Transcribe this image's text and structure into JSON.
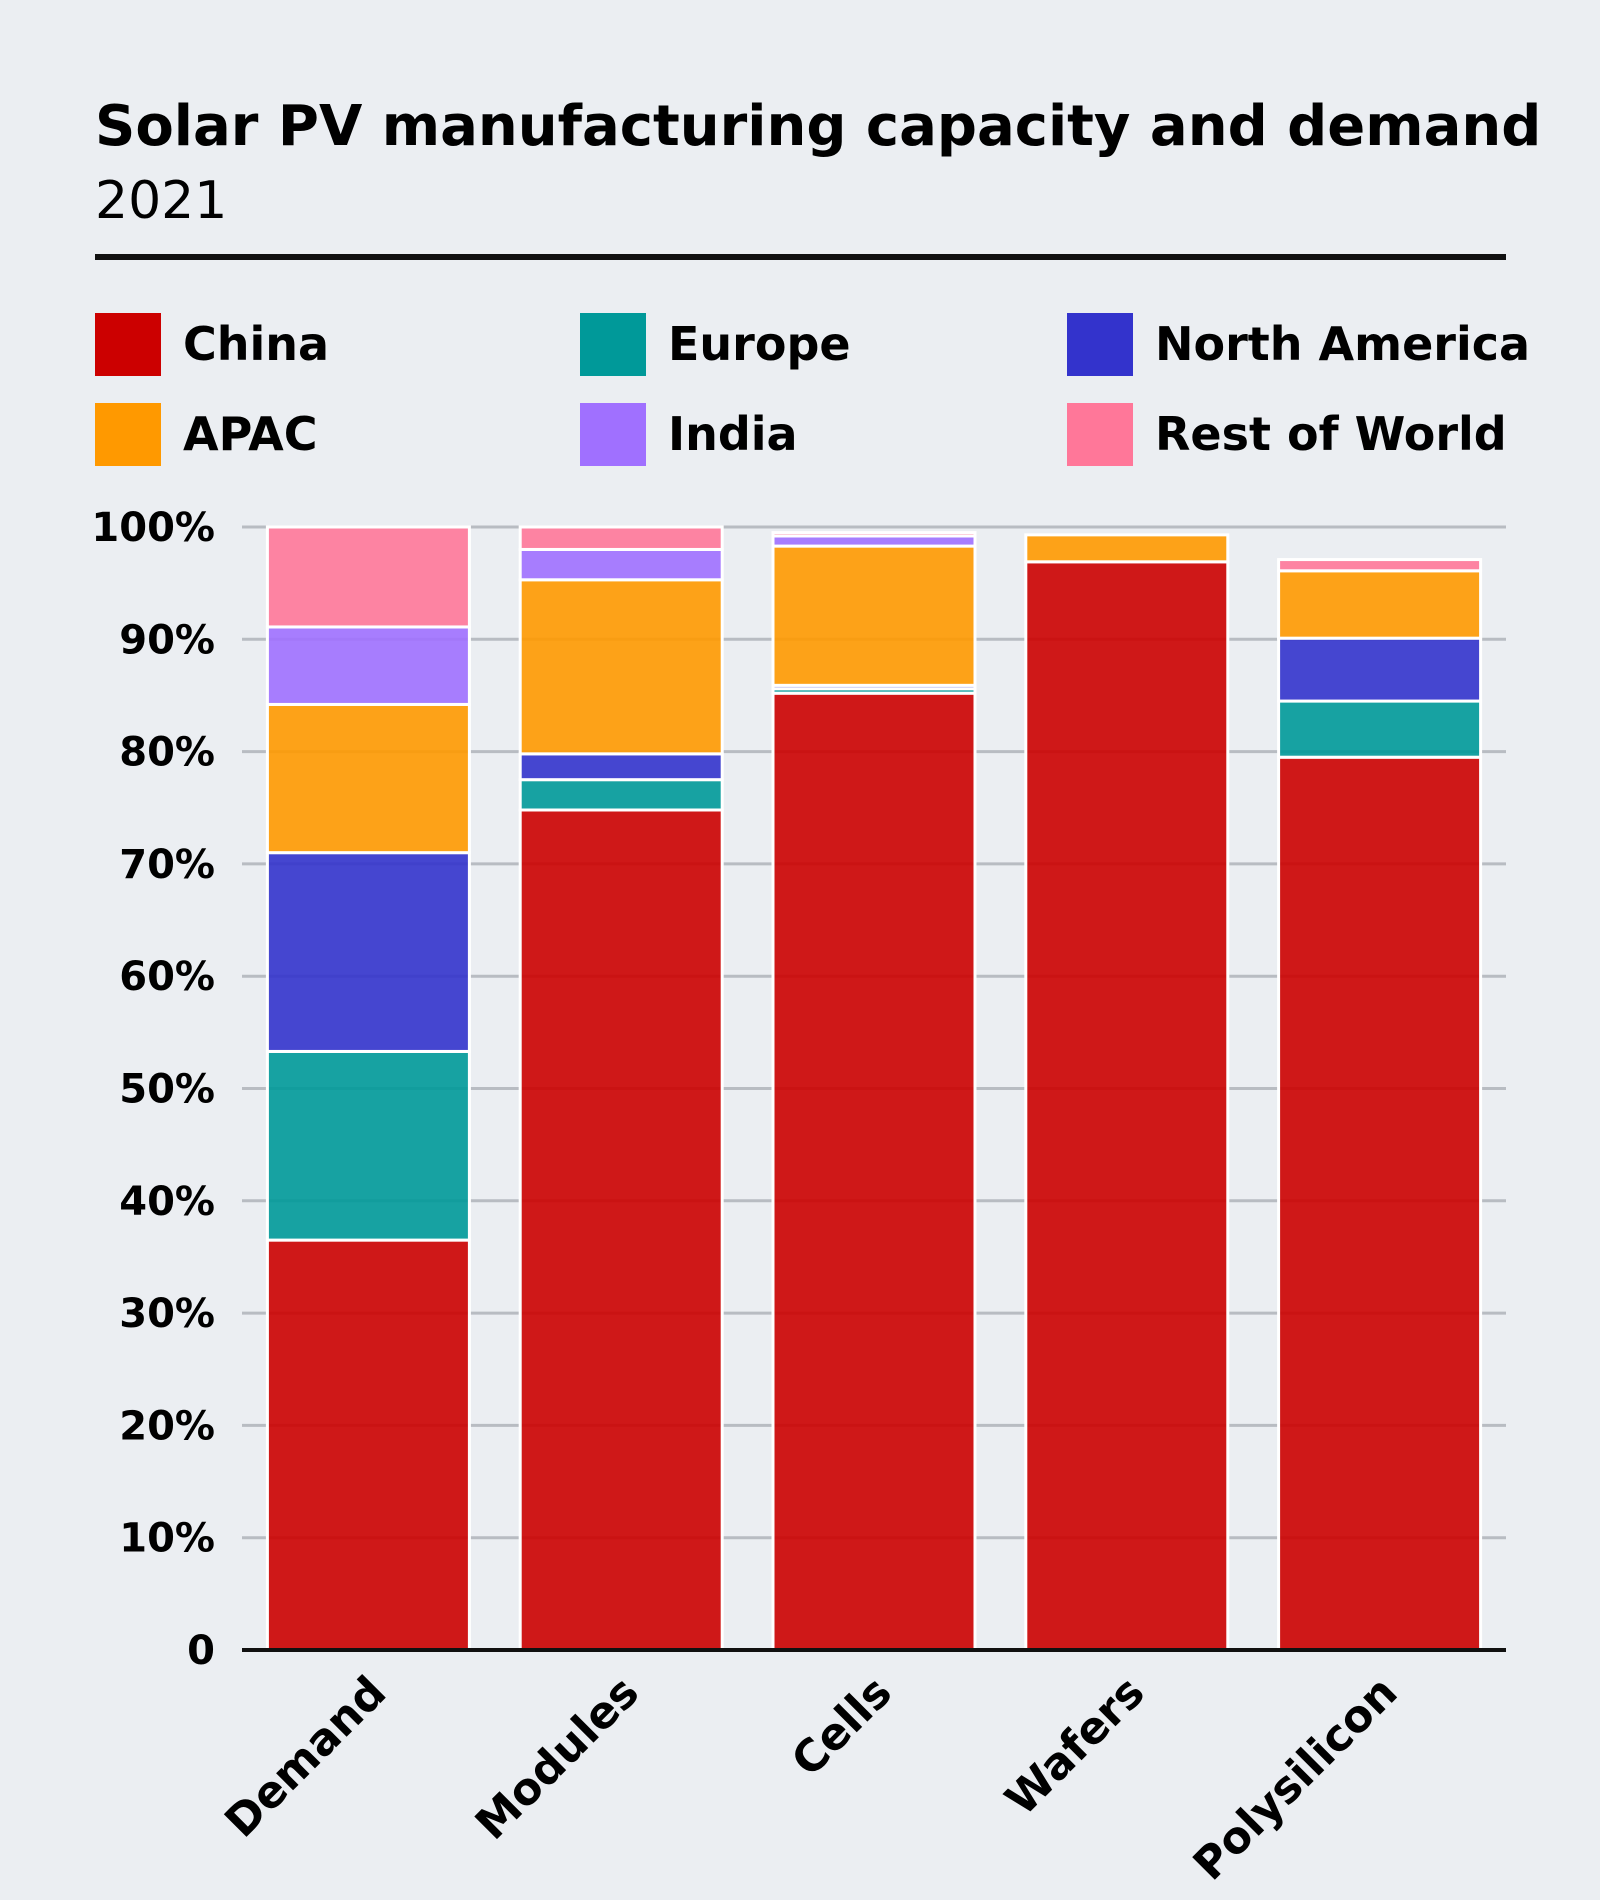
{
  "chart_data": {
    "type": "bar",
    "stacked": true,
    "title": "Solar PV manufacturing capacity and demand",
    "subtitle": "2021",
    "categories": [
      "Demand",
      "Modules",
      "Cells",
      "Wafers",
      "Polysilicon"
    ],
    "series": [
      {
        "name": "China",
        "color": "#cc0000",
        "values": [
          36.5,
          74.8,
          85.2,
          96.9,
          79.5
        ]
      },
      {
        "name": "Europe",
        "color": "#009999",
        "values": [
          16.8,
          2.7,
          0.4,
          0.0,
          5.0
        ]
      },
      {
        "name": "North America",
        "color": "#3333cc",
        "values": [
          17.7,
          2.3,
          0.3,
          0.0,
          5.6
        ]
      },
      {
        "name": "APAC",
        "color": "#ff9900",
        "values": [
          13.2,
          15.5,
          12.4,
          2.4,
          6.0
        ]
      },
      {
        "name": "India",
        "color": "#a070ff",
        "values": [
          6.9,
          2.7,
          0.9,
          0.0,
          0.0
        ]
      },
      {
        "name": "Rest of World",
        "color": "#ff7799",
        "values": [
          8.9,
          2.0,
          0.3,
          0.0,
          1.0
        ]
      }
    ],
    "y_ticks": [
      "0",
      "10%",
      "20%",
      "30%",
      "40%",
      "50%",
      "60%",
      "70%",
      "80%",
      "90%",
      "100%"
    ],
    "ylim": [
      0,
      100
    ],
    "grid": true,
    "legend_position": "top"
  }
}
